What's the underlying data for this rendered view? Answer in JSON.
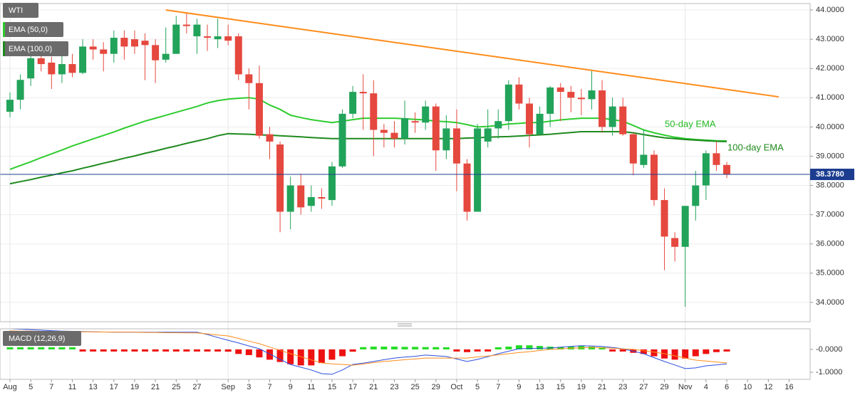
{
  "chart_data": [
    {
      "type": "candlestick",
      "title": "WTI",
      "up_color": "#22a35a",
      "down_color": "#e5483e",
      "open": [
        40.52,
        40.93,
        41.66,
        42.35,
        42.2,
        41.8,
        42.15,
        41.85,
        42.75,
        42.65,
        42.5,
        43.05,
        43.0,
        42.95,
        42.8,
        42.3,
        42.5,
        43.5,
        43.1,
        43.1,
        43.0,
        43.1,
        43.1,
        41.8,
        41.5,
        39.75,
        39.4,
        37.1,
        38.0,
        37.3,
        37.6,
        37.5,
        38.65,
        40.45,
        41.2,
        41.15,
        39.9,
        39.8,
        39.6,
        40.2,
        40.15,
        40.7,
        39.2,
        39.95,
        38.75,
        37.1,
        39.5,
        39.95,
        40.2,
        41.45,
        40.8,
        39.75,
        40.45,
        41.35,
        41.2,
        41.0,
        40.95,
        41.25,
        40.0,
        40.7,
        39.75,
        38.7,
        39.05,
        37.5,
        36.2,
        35.9,
        37.3,
        38.0,
        39.1,
        38.7,
        null,
        null,
        null,
        null,
        null,
        null
      ],
      "high": [
        41.18,
        41.8,
        42.5,
        42.6,
        42.4,
        42.6,
        42.5,
        43.0,
        43.0,
        42.9,
        43.3,
        43.3,
        43.3,
        43.2,
        43.0,
        43.4,
        43.8,
        43.9,
        43.7,
        43.5,
        43.7,
        43.5,
        43.2,
        42.0,
        42.1,
        40.0,
        39.5,
        38.3,
        38.4,
        38.0,
        37.9,
        38.8,
        40.6,
        41.4,
        41.8,
        41.6,
        40.1,
        40.2,
        40.9,
        40.5,
        40.9,
        40.8,
        40.4,
        40.6,
        38.9,
        40.1,
        40.6,
        40.6,
        41.6,
        41.7,
        41.0,
        40.7,
        41.4,
        41.5,
        41.4,
        41.3,
        41.95,
        41.6,
        41.0,
        41.0,
        39.8,
        39.9,
        39.2,
        37.9,
        36.4,
        37.3,
        38.5,
        39.2,
        39.5,
        38.8,
        null,
        null,
        null,
        null,
        null,
        null
      ],
      "low": [
        40.33,
        40.6,
        41.4,
        41.9,
        41.3,
        41.5,
        41.7,
        41.8,
        42.3,
        41.9,
        42.2,
        42.3,
        42.5,
        41.6,
        41.5,
        42.2,
        42.5,
        43.2,
        42.5,
        42.6,
        42.7,
        42.8,
        41.6,
        40.6,
        39.6,
        38.9,
        36.4,
        36.5,
        37.0,
        37.1,
        37.2,
        37.3,
        38.6,
        40.3,
        39.9,
        39.0,
        39.3,
        39.3,
        39.4,
        39.8,
        39.9,
        38.5,
        38.9,
        37.8,
        36.8,
        37.1,
        39.3,
        39.6,
        39.9,
        40.6,
        39.3,
        39.7,
        40.0,
        40.2,
        40.5,
        40.4,
        40.6,
        39.8,
        39.7,
        39.7,
        38.35,
        38.6,
        37.3,
        35.1,
        35.4,
        33.85,
        36.8,
        37.5,
        38.5,
        38.25,
        null,
        null,
        null,
        null,
        null,
        null
      ],
      "close": [
        40.93,
        41.61,
        42.35,
        42.15,
        41.8,
        42.15,
        41.85,
        42.75,
        42.65,
        42.5,
        43.05,
        42.75,
        42.75,
        42.8,
        42.28,
        42.5,
        43.5,
        43.45,
        43.5,
        43.05,
        43.1,
        42.95,
        41.8,
        41.5,
        39.7,
        39.5,
        37.1,
        38.0,
        37.25,
        37.6,
        37.55,
        38.65,
        40.45,
        41.2,
        41.15,
        39.9,
        39.8,
        39.6,
        40.3,
        40.15,
        40.7,
        39.2,
        39.95,
        38.75,
        37.1,
        39.95,
        39.95,
        40.2,
        41.45,
        40.8,
        39.75,
        40.45,
        41.35,
        41.2,
        41.0,
        40.95,
        41.25,
        40.0,
        40.7,
        39.75,
        38.75,
        39.05,
        37.5,
        36.25,
        35.9,
        37.3,
        38.0,
        39.1,
        38.7,
        38.378,
        null,
        null,
        null,
        null,
        null,
        null
      ],
      "series": [
        {
          "name": "EMA (50,0)",
          "color": "#2ecc2e",
          "values": [
            38.55,
            38.68,
            38.81,
            38.95,
            39.08,
            39.21,
            39.35,
            39.47,
            39.59,
            39.71,
            39.83,
            39.96,
            40.08,
            40.2,
            40.3,
            40.4,
            40.5,
            40.6,
            40.7,
            40.82,
            40.9,
            40.95,
            40.98,
            41.0,
            40.95,
            40.75,
            40.6,
            40.4,
            40.32,
            40.25,
            40.2,
            40.15,
            40.2,
            40.25,
            40.3,
            40.3,
            40.3,
            40.3,
            40.28,
            40.26,
            40.24,
            40.2,
            40.18,
            40.15,
            40.08,
            40.0,
            40.02,
            40.05,
            40.1,
            40.12,
            40.15,
            40.15,
            40.2,
            40.24,
            40.27,
            40.3,
            40.3,
            40.3,
            40.25,
            40.2,
            40.05,
            39.9,
            39.8,
            39.72,
            39.65,
            39.6,
            39.57,
            39.55,
            39.53,
            39.52,
            null,
            null,
            null,
            null,
            null,
            null
          ]
        },
        {
          "name": "EMA (100,0)",
          "color": "#1e8a1e",
          "values": [
            38.06,
            38.13,
            38.2,
            38.28,
            38.35,
            38.43,
            38.5,
            38.59,
            38.67,
            38.76,
            38.84,
            38.93,
            39.01,
            39.1,
            39.18,
            39.27,
            39.35,
            39.44,
            39.52,
            39.6,
            39.7,
            39.77,
            39.76,
            39.75,
            39.73,
            39.72,
            39.7,
            39.68,
            39.66,
            39.64,
            39.62,
            39.6,
            39.6,
            39.6,
            39.6,
            39.6,
            39.6,
            39.6,
            39.6,
            39.6,
            39.6,
            39.6,
            39.6,
            39.6,
            39.62,
            39.63,
            39.65,
            39.66,
            39.67,
            39.69,
            39.71,
            39.73,
            39.75,
            39.78,
            39.81,
            39.84,
            39.84,
            39.84,
            39.84,
            39.84,
            39.8,
            39.74,
            39.68,
            39.63,
            39.6,
            39.57,
            39.55,
            39.53,
            39.51,
            39.5,
            null,
            null,
            null,
            null,
            null,
            null
          ]
        }
      ],
      "trendline": {
        "color": "#ff8c1a",
        "x": [
          15,
          74
        ],
        "values": [
          44.0,
          41.03
        ]
      },
      "annotations": [
        {
          "text": "50-day EMA",
          "color": "#22b822"
        },
        {
          "text": "100-day EMA",
          "color": "#1e8a1e"
        }
      ],
      "last_price": {
        "value": 38.378,
        "label": "38.3780",
        "color": "#1c3d8f"
      },
      "ylim": [
        33.34,
        44.22
      ],
      "yticks": [
        {
          "value": 34,
          "label": "34.0000"
        },
        {
          "value": 35,
          "label": "35.0000"
        },
        {
          "value": 36,
          "label": "36.0000"
        },
        {
          "value": 37,
          "label": "37.0000"
        },
        {
          "value": 38,
          "label": "38.0000"
        },
        {
          "value": 39,
          "label": "39.0000"
        },
        {
          "value": 40,
          "label": "40.0000"
        },
        {
          "value": 41,
          "label": "41.0000"
        },
        {
          "value": 42,
          "label": "42.0000"
        },
        {
          "value": 43,
          "label": "43.0000"
        },
        {
          "value": 44,
          "label": "44.0000"
        }
      ],
      "grid": true
    },
    {
      "type": "macd",
      "title": "MACD (12,26,9)",
      "categories": [
        "Aug",
        null,
        "5",
        null,
        "7",
        null,
        "11",
        null,
        "13",
        null,
        "17",
        null,
        "19",
        null,
        "21",
        null,
        "25",
        null,
        "27",
        null,
        null,
        "Sep",
        null,
        "3",
        null,
        "7",
        null,
        "9",
        null,
        "11",
        null,
        "15",
        null,
        "17",
        null,
        "21",
        null,
        "23",
        null,
        "25",
        null,
        "29",
        null,
        "Oct",
        null,
        "5",
        null,
        "7",
        null,
        "9",
        null,
        "13",
        null,
        "15",
        null,
        "19",
        null,
        "21",
        null,
        "23",
        null,
        "27",
        null,
        "29",
        null,
        "Nov",
        null,
        "4",
        null,
        "6",
        null,
        "10",
        null,
        "12",
        null,
        "16"
      ],
      "series": [
        {
          "color": "#2b4de0",
          "values": [
            0.9,
            0.88,
            0.86,
            0.84,
            0.82,
            0.8,
            0.79,
            0.78,
            0.77,
            0.76,
            0.75,
            0.75,
            0.75,
            0.75,
            0.75,
            0.75,
            0.75,
            0.75,
            0.75,
            0.65,
            0.52,
            0.4,
            0.28,
            0.15,
            0.03,
            -0.2,
            -0.44,
            -0.66,
            -0.78,
            -0.9,
            -1.06,
            -1.09,
            -0.9,
            -0.66,
            -0.6,
            -0.53,
            -0.45,
            -0.38,
            -0.34,
            -0.3,
            -0.25,
            -0.28,
            -0.31,
            -0.42,
            -0.53,
            -0.44,
            -0.32,
            -0.19,
            -0.08,
            0.03,
            0.04,
            0.05,
            0.06,
            0.1,
            0.13,
            0.16,
            0.15,
            0.13,
            0.08,
            0.03,
            -0.08,
            -0.19,
            -0.36,
            -0.53,
            -0.68,
            -0.84,
            -0.81,
            -0.72,
            -0.68,
            -0.63,
            null,
            null,
            null,
            null,
            null,
            null
          ]
        },
        {
          "color": "#ff8c1a",
          "values": [
            0.81,
            0.8,
            0.8,
            0.79,
            0.79,
            0.78,
            0.78,
            0.77,
            0.77,
            0.76,
            0.76,
            0.75,
            0.75,
            0.74,
            0.74,
            0.73,
            0.73,
            0.72,
            0.72,
            0.68,
            0.63,
            0.59,
            0.48,
            0.36,
            0.25,
            0.1,
            -0.04,
            -0.19,
            -0.32,
            -0.46,
            -0.59,
            -0.63,
            -0.66,
            -0.69,
            -0.64,
            -0.58,
            -0.53,
            -0.49,
            -0.45,
            -0.42,
            -0.38,
            -0.38,
            -0.38,
            -0.38,
            -0.38,
            -0.33,
            -0.29,
            -0.24,
            -0.19,
            -0.14,
            -0.1,
            -0.05,
            0,
            0.02,
            0.05,
            0.07,
            0.09,
            0.07,
            0.05,
            0.02,
            0,
            -0.06,
            -0.12,
            -0.19,
            -0.28,
            -0.38,
            -0.47,
            -0.51,
            -0.55,
            -0.59,
            null,
            null,
            null,
            null,
            null,
            null
          ]
        }
      ],
      "histogram": {
        "up_color": "#22dd22",
        "down_color": "#ee1111",
        "values": [
          0.02,
          0.02,
          0.01,
          0.01,
          0.01,
          0.01,
          0,
          -0.01,
          -0.01,
          -0.02,
          -0.04,
          -0.05,
          -0.05,
          -0.05,
          -0.05,
          -0.05,
          -0.05,
          -0.05,
          -0.05,
          -0.06,
          -0.08,
          -0.1,
          -0.2,
          -0.25,
          -0.35,
          -0.45,
          -0.55,
          -0.65,
          -0.7,
          -0.7,
          -0.6,
          -0.45,
          -0.3,
          -0.1,
          0.1,
          0.12,
          0.12,
          0.12,
          0.11,
          0.11,
          0.1,
          0.1,
          0.05,
          -0.05,
          -0.12,
          -0.08,
          -0.03,
          0.05,
          0.12,
          0.18,
          0.18,
          0.15,
          0.12,
          0.1,
          0.12,
          0.15,
          0.12,
          0.08,
          -0.02,
          -0.05,
          -0.15,
          -0.2,
          -0.3,
          -0.4,
          -0.45,
          -0.4,
          -0.3,
          -0.2,
          -0.12,
          -0.05,
          null,
          null,
          null,
          null,
          null,
          null
        ]
      },
      "ylim": [
        -1.31,
        0.9
      ],
      "yticks": [
        {
          "value": 0,
          "label": "-0.0000"
        },
        {
          "value": -1,
          "label": "-1.0000"
        }
      ]
    }
  ]
}
